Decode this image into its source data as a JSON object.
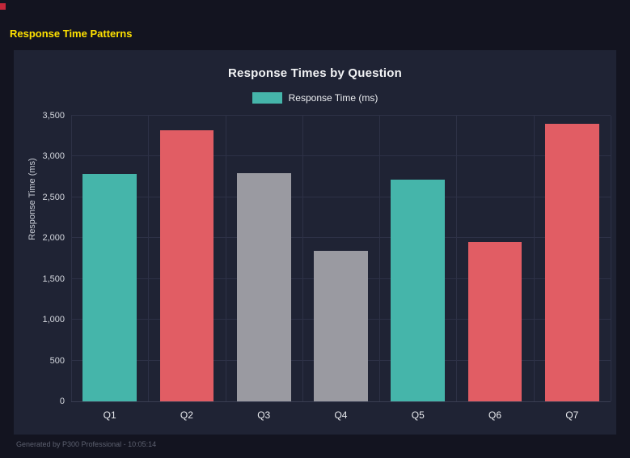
{
  "header": {
    "title": "Response Time Patterns",
    "title_color": "#ffe100"
  },
  "chart_data": {
    "type": "bar",
    "title": "Response Times by Question",
    "legend": "Response Time (ms)",
    "legend_color": "#45b5aa",
    "ylabel": "Response Time (ms)",
    "categories": [
      "Q1",
      "Q2",
      "Q3",
      "Q4",
      "Q5",
      "Q6",
      "Q7"
    ],
    "values": [
      2790,
      3320,
      2800,
      1840,
      2720,
      1950,
      3400
    ],
    "colors": [
      "#45b5aa",
      "#e15d64",
      "#9a9aa1",
      "#9a9aa1",
      "#45b5aa",
      "#e15d64",
      "#e15d64"
    ],
    "ylim": [
      0,
      3500
    ],
    "yticks": [
      0,
      500,
      1000,
      1500,
      2000,
      2500,
      3000,
      3500
    ],
    "grid": true,
    "legend_position": "top",
    "panel_color": "#1f2334",
    "background_color": "#131420"
  },
  "footer": {
    "text": "Generated by P300 Professional - 10:05:14"
  }
}
